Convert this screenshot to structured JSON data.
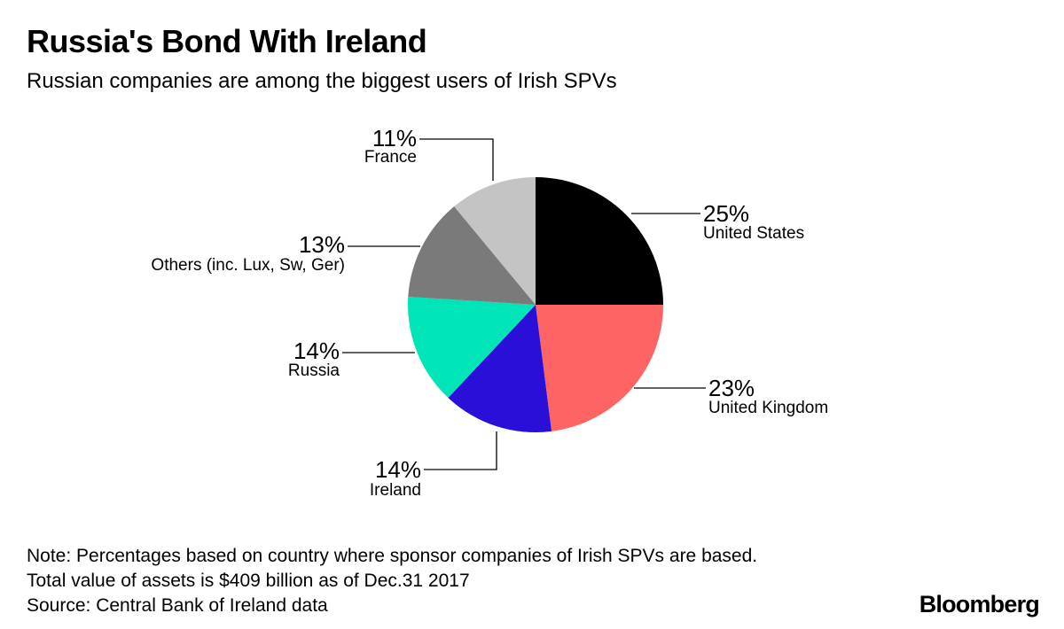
{
  "title": "Russia's Bond With Ireland",
  "subtitle": "Russian companies are among the biggest users of Irish SPVs",
  "notes": [
    "Note: Percentages based on country where sponsor companies of Irish SPVs are based.",
    "Total value of assets is $409 billion as of Dec.31 2017",
    "Source: Central Bank of Ireland data"
  ],
  "brand": "Bloomberg",
  "chart_data": {
    "type": "pie",
    "start": "12 o'clock",
    "direction": "clockwise",
    "slices": [
      {
        "label": "United States",
        "value": 25,
        "value_label": "25%",
        "color": "#000000"
      },
      {
        "label": "United Kingdom",
        "value": 23,
        "value_label": "23%",
        "color": "#ff6464"
      },
      {
        "label": "Ireland",
        "value": 14,
        "value_label": "14%",
        "color": "#2a0fd9"
      },
      {
        "label": "Russia",
        "value": 14,
        "value_label": "14%",
        "color": "#00e5b8"
      },
      {
        "label": "Others (inc. Lux, Sw, Ger)",
        "value": 13,
        "value_label": "13%",
        "color": "#7a7a7a"
      },
      {
        "label": "France",
        "value": 11,
        "value_label": "11%",
        "color": "#c4c4c4"
      }
    ]
  }
}
